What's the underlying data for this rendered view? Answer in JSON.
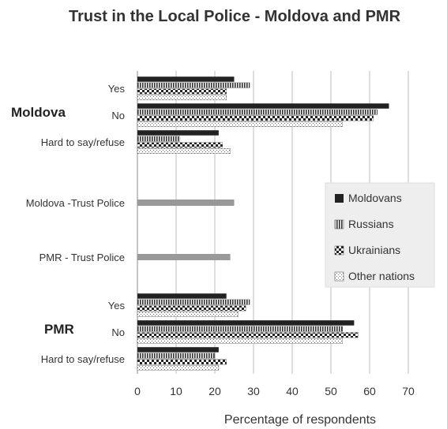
{
  "chart_data": {
    "type": "bar",
    "orientation": "horizontal",
    "title": "Trust in the Local Police - Moldova and PMR",
    "xlabel": "Percentage of respondents",
    "xlim": [
      0,
      70
    ],
    "xticks": [
      "0",
      "10",
      "20",
      "30",
      "40",
      "50",
      "60",
      "70"
    ],
    "grid": true,
    "legend_position": "right",
    "group_labels": [
      "Moldova",
      "PMR"
    ],
    "rows": [
      {
        "label": "Yes",
        "values": [
          25,
          29,
          23,
          23
        ]
      },
      {
        "label": "No",
        "values": [
          65,
          62,
          61,
          53
        ]
      },
      {
        "label": "Hard  to say/refuse",
        "values": [
          21,
          11,
          22,
          24
        ]
      },
      {
        "label": "Moldova -Trust Police",
        "values": [
          25
        ]
      },
      {
        "label": "PMR - Trust Police",
        "values": [
          24
        ]
      },
      {
        "label": "Yes",
        "values": [
          23,
          29,
          28,
          26
        ]
      },
      {
        "label": "No",
        "values": [
          56,
          53,
          57,
          53
        ]
      },
      {
        "label": "Hard  to say/refuse",
        "values": [
          21,
          20,
          23,
          21
        ]
      }
    ],
    "series": [
      {
        "name": "Moldovans",
        "pattern": "solid",
        "color": "#333333"
      },
      {
        "name": "Russians",
        "pattern": "vertical-stripes",
        "color": "#333333"
      },
      {
        "name": "Ukrainians",
        "pattern": "checker",
        "color": "#333333"
      },
      {
        "name": "Other nations",
        "pattern": "dots",
        "color": "#777777"
      }
    ],
    "trust_bar_color": "#999999"
  }
}
